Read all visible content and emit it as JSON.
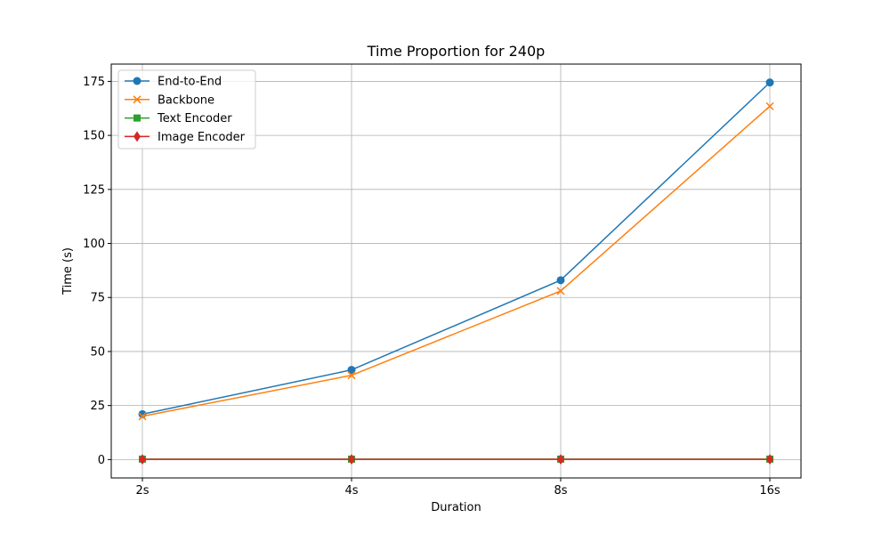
{
  "chart_data": {
    "type": "line",
    "title": "Time Proportion for 240p",
    "xlabel": "Duration",
    "ylabel": "Time (s)",
    "categories": [
      "2s",
      "4s",
      "8s",
      "16s"
    ],
    "ylim": [
      -8.5,
      183
    ],
    "yticks": [
      0,
      25,
      50,
      75,
      100,
      125,
      150,
      175
    ],
    "grid": true,
    "legend_position": "top-left",
    "series": [
      {
        "name": "End-to-End",
        "values": [
          21,
          41.5,
          83,
          174.5
        ],
        "color": "#1f77b4",
        "marker": "circle"
      },
      {
        "name": "Backbone",
        "values": [
          20,
          39,
          78,
          163.5
        ],
        "color": "#ff7f0e",
        "marker": "x"
      },
      {
        "name": "Text Encoder",
        "values": [
          0.2,
          0.2,
          0.2,
          0.2
        ],
        "color": "#2ca02c",
        "marker": "square"
      },
      {
        "name": "Image Encoder",
        "values": [
          0.1,
          0.1,
          0.1,
          0.1
        ],
        "color": "#d62728",
        "marker": "diamond"
      }
    ]
  }
}
